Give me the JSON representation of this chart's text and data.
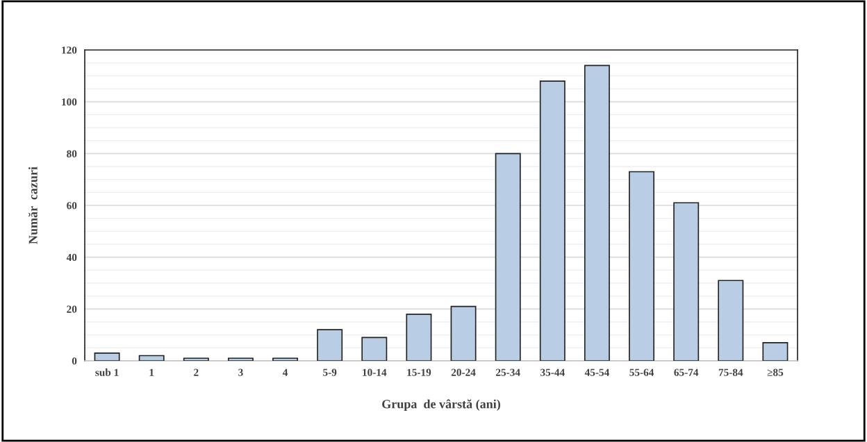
{
  "chart_data": {
    "type": "bar",
    "xlabel": "Grupa  de vârstă (ani)",
    "ylabel": "Număr  cazuri",
    "categories": [
      "sub 1",
      "1",
      "2",
      "3",
      "4",
      "5-9",
      "10-14",
      "15-19",
      "20-24",
      "25-34",
      "35-44",
      "45-54",
      "55-64",
      "65-74",
      "75-84",
      "≥85"
    ],
    "values": [
      3,
      2,
      1,
      1,
      1,
      12,
      9,
      18,
      21,
      80,
      108,
      114,
      73,
      61,
      31,
      7
    ],
    "color": "#b9cde5",
    "ylim": [
      0,
      120
    ],
    "yticks": [
      0,
      20,
      40,
      60,
      80,
      100,
      120
    ],
    "grid": "y"
  }
}
